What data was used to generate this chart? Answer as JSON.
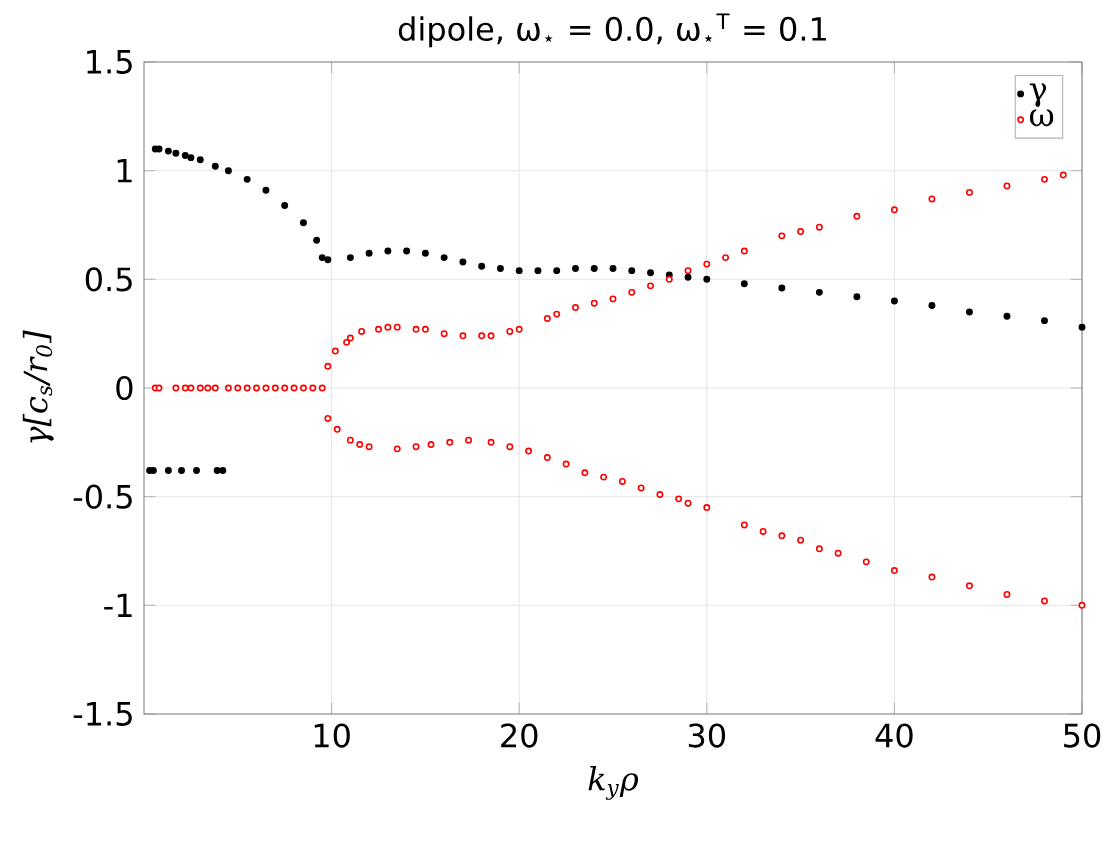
{
  "chart_data": {
    "type": "scatter",
    "title": "dipole, ω$_{⋆}$ = 0.0, ω$_{⋆}$$^{T}$ = 0.1",
    "xlabel": "k$_{y}$ρ",
    "ylabel": "γ[c$_{s}$/r$_{0}$]",
    "xlim": [
      0,
      50
    ],
    "xticks": [
      10,
      20,
      30,
      40,
      50
    ],
    "ylim": [
      -1.5,
      1.5
    ],
    "yticks": [
      -1.5,
      -1,
      -0.5,
      0,
      0.5,
      1,
      1.5
    ],
    "grid": true,
    "legend": "top right",
    "marker": "circle",
    "series": [
      {
        "name": "γ",
        "color": "#000000",
        "x": [
          0.6,
          0.8,
          1.3,
          1.7,
          2.2,
          2.5,
          3,
          3.8,
          4.5,
          5.5,
          6.5,
          7.5,
          8.5,
          9.2,
          9.5,
          9.8,
          11,
          12,
          13,
          14,
          15,
          16,
          17,
          18,
          19,
          20,
          21,
          22,
          23,
          24,
          25,
          26,
          27,
          28,
          29,
          30,
          32,
          34,
          36,
          38,
          40,
          42,
          44,
          46,
          48,
          50,
          0.3,
          0.5,
          1.3,
          2.0,
          2.8,
          3.9,
          4.2
        ],
        "values": [
          1.1,
          1.1,
          1.09,
          1.08,
          1.07,
          1.06,
          1.05,
          1.02,
          1.0,
          0.96,
          0.91,
          0.84,
          0.76,
          0.68,
          0.6,
          0.59,
          0.6,
          0.62,
          0.63,
          0.63,
          0.62,
          0.6,
          0.58,
          0.56,
          0.55,
          0.54,
          0.54,
          0.54,
          0.55,
          0.55,
          0.55,
          0.54,
          0.53,
          0.52,
          0.51,
          0.5,
          0.48,
          0.46,
          0.44,
          0.42,
          0.4,
          0.38,
          0.35,
          0.33,
          0.31,
          0.28,
          -0.38,
          -0.38,
          -0.38,
          -0.38,
          -0.38,
          -0.38,
          -0.38
        ]
      },
      {
        "name": "ω",
        "color": "#ff0000",
        "x": [
          0.6,
          0.8,
          1.7,
          2.2,
          2.5,
          3,
          3.4,
          3.8,
          4.5,
          5,
          5.5,
          6,
          6.5,
          7,
          7.5,
          8,
          8.5,
          9,
          9.5,
          9.8,
          10.2,
          10.8,
          11,
          11.6,
          12.5,
          13,
          13.5,
          14.5,
          15,
          16,
          17,
          18,
          18.5,
          19.5,
          20,
          21.5,
          22,
          23,
          24,
          25,
          26,
          27,
          28,
          29,
          30,
          31,
          32,
          34,
          35,
          36,
          38,
          40,
          42,
          44,
          46,
          48,
          49,
          9.8,
          10.3,
          11,
          11.5,
          12,
          13.5,
          14.5,
          15.3,
          16.3,
          17.3,
          18.5,
          19.5,
          20.5,
          21.5,
          22.5,
          23.5,
          24.5,
          25.5,
          26.5,
          27.5,
          28.5,
          29,
          30,
          32,
          33,
          34,
          35,
          36,
          37,
          38.5,
          40,
          42,
          44,
          46,
          48,
          50
        ],
        "values": [
          0,
          0,
          0,
          0,
          0,
          0,
          0,
          0,
          0,
          0,
          0,
          0,
          0,
          0,
          0,
          0,
          0,
          0,
          0,
          0.1,
          0.17,
          0.21,
          0.23,
          0.26,
          0.27,
          0.28,
          0.28,
          0.27,
          0.27,
          0.25,
          0.24,
          0.24,
          0.24,
          0.26,
          0.27,
          0.32,
          0.34,
          0.37,
          0.39,
          0.41,
          0.44,
          0.47,
          0.5,
          0.54,
          0.57,
          0.6,
          0.63,
          0.7,
          0.72,
          0.74,
          0.79,
          0.82,
          0.87,
          0.9,
          0.93,
          0.96,
          0.98,
          -0.14,
          -0.19,
          -0.24,
          -0.26,
          -0.27,
          -0.28,
          -0.27,
          -0.26,
          -0.25,
          -0.24,
          -0.25,
          -0.27,
          -0.29,
          -0.32,
          -0.35,
          -0.39,
          -0.41,
          -0.43,
          -0.46,
          -0.49,
          -0.51,
          -0.53,
          -0.55,
          -0.63,
          -0.66,
          -0.68,
          -0.7,
          -0.74,
          -0.76,
          -0.8,
          -0.84,
          -0.87,
          -0.91,
          -0.95,
          -0.98,
          -1.0
        ]
      }
    ]
  }
}
